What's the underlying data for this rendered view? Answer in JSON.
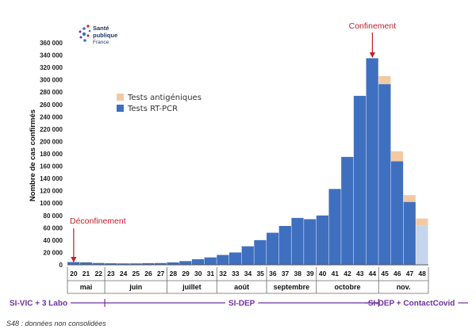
{
  "logo": {
    "line1": "Santé",
    "line2": "publique",
    "line3": "France"
  },
  "colors": {
    "rtpcr": "#3f6fbf",
    "rtpcr_partial": "#c5d5ec",
    "antigen": "#f3c9a4",
    "annotation": "#c0202a",
    "system": "#7030a0"
  },
  "chart_data": {
    "type": "bar",
    "stacked": true,
    "ylabel": "Nombre de cas confirmés",
    "ylim": [
      0,
      360000
    ],
    "yticks": [
      "0",
      "20 000",
      "40 000",
      "60 000",
      "80 000",
      "100 000",
      "120 000",
      "140 000",
      "160 000",
      "180 000",
      "200 000",
      "220 000",
      "240 000",
      "260 000",
      "280 000",
      "300 000",
      "320 000",
      "340 000",
      "360 000"
    ],
    "grid": false,
    "legend_position": "upper-left",
    "categories": [
      "20",
      "21",
      "22",
      "23",
      "24",
      "25",
      "26",
      "27",
      "28",
      "29",
      "30",
      "31",
      "32",
      "33",
      "34",
      "35",
      "36",
      "37",
      "38",
      "39",
      "40",
      "41",
      "42",
      "43",
      "44",
      "45",
      "46",
      "47",
      "48"
    ],
    "series": [
      {
        "name": "Tests RT-PCR",
        "values": [
          4500,
          4000,
          3000,
          2500,
          2300,
          2300,
          2700,
          2900,
          3900,
          6000,
          9000,
          12000,
          16000,
          20000,
          30000,
          40000,
          52000,
          63000,
          76000,
          74000,
          80000,
          123000,
          175000,
          274000,
          335000,
          293000,
          168000,
          102000,
          64000
        ]
      },
      {
        "name": "Tests antigéniques",
        "values": [
          0,
          0,
          0,
          0,
          0,
          0,
          0,
          0,
          0,
          0,
          0,
          0,
          0,
          0,
          0,
          0,
          0,
          0,
          0,
          0,
          0,
          0,
          0,
          0,
          0,
          13000,
          16000,
          11000,
          11000
        ]
      }
    ],
    "partial_week": "48",
    "months": [
      {
        "label": "mai",
        "from": "20",
        "to": "22"
      },
      {
        "label": "juin",
        "from": "23",
        "to": "27"
      },
      {
        "label": "juillet",
        "from": "28",
        "to": "31"
      },
      {
        "label": "août",
        "from": "32",
        "to": "35"
      },
      {
        "label": "septembre",
        "from": "36",
        "to": "39"
      },
      {
        "label": "octobre",
        "from": "40",
        "to": "44"
      },
      {
        "label": "nov.",
        "from": "45",
        "to": "48"
      }
    ],
    "annotations": [
      {
        "text": "Déconfinement",
        "week": "20"
      },
      {
        "text": "Confinement",
        "week": "44"
      }
    ],
    "systems": [
      {
        "label": "SI-VIC + 3 Labo",
        "from": "20",
        "to": "22"
      },
      {
        "label": "SI-DEP",
        "from": "23",
        "to": "44"
      },
      {
        "label": "SI-DEP + ContactCovid",
        "from": "45",
        "to": "48"
      }
    ],
    "footnote": "S48 : données non consolidées"
  }
}
